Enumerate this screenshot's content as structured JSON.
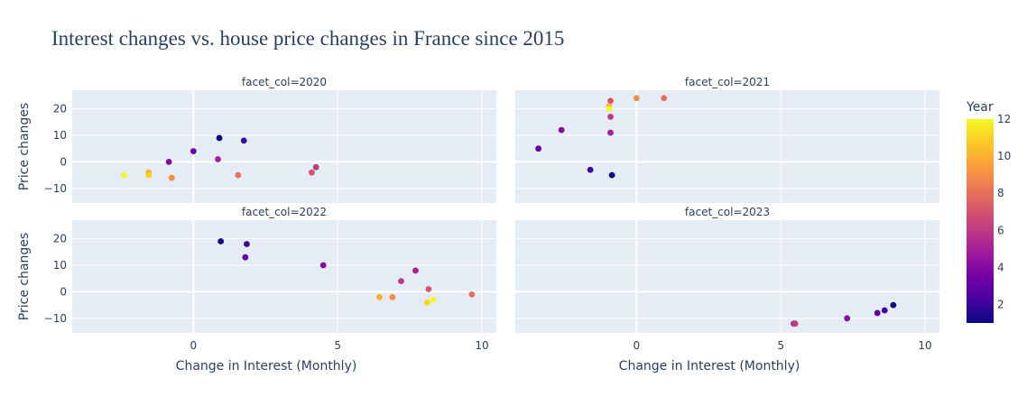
{
  "chart_data": {
    "type": "scatter",
    "title": "Interest changes vs. house price changes in France since 2015",
    "xlabel": "Change in Interest (Monthly)",
    "ylabel": "Price changes",
    "xlim": [
      -4.2,
      10.5
    ],
    "ylim": [
      -15.5,
      27
    ],
    "xticks": [
      0,
      5,
      10
    ],
    "yticks": [
      -10,
      0,
      10,
      20
    ],
    "colorbar": {
      "title": "Year",
      "min": 1,
      "max": 12,
      "ticks": [
        2,
        4,
        6,
        8,
        10,
        12
      ],
      "colorscale": [
        "#0d0887",
        "#46039f",
        "#7201a8",
        "#9c179e",
        "#bd3786",
        "#d8576b",
        "#ed7953",
        "#fb9f3a",
        "#fdca26",
        "#f0f921"
      ]
    },
    "facets": [
      {
        "label": "facet_col=2020",
        "points": [
          {
            "x": 0.9,
            "y": 9,
            "c": 1
          },
          {
            "x": 1.75,
            "y": 8,
            "c": 2
          },
          {
            "x": 0.0,
            "y": 4,
            "c": 3
          },
          {
            "x": -0.85,
            "y": 0,
            "c": 4
          },
          {
            "x": 0.85,
            "y": 1,
            "c": 5
          },
          {
            "x": 4.25,
            "y": -2,
            "c": 6
          },
          {
            "x": 4.1,
            "y": -4,
            "c": 7
          },
          {
            "x": 1.55,
            "y": -5,
            "c": 8
          },
          {
            "x": -0.75,
            "y": -6,
            "c": 9
          },
          {
            "x": -1.55,
            "y": -4,
            "c": 10
          },
          {
            "x": -1.55,
            "y": -5,
            "c": 11
          },
          {
            "x": -2.4,
            "y": -5,
            "c": 12
          }
        ]
      },
      {
        "label": "facet_col=2021",
        "points": [
          {
            "x": -0.85,
            "y": -5,
            "c": 1
          },
          {
            "x": -1.6,
            "y": -3,
            "c": 2
          },
          {
            "x": -3.4,
            "y": 5,
            "c": 3
          },
          {
            "x": -2.6,
            "y": 12,
            "c": 4
          },
          {
            "x": -0.9,
            "y": 11,
            "c": 5
          },
          {
            "x": -0.9,
            "y": 17,
            "c": 6
          },
          {
            "x": -0.9,
            "y": 23,
            "c": 7
          },
          {
            "x": 0.95,
            "y": 24,
            "c": 8
          },
          {
            "x": 0.0,
            "y": 24,
            "c": 9
          },
          {
            "x": -0.95,
            "y": 21,
            "c": 10
          },
          {
            "x": -0.95,
            "y": 20,
            "c": 12
          }
        ]
      },
      {
        "label": "facet_col=2022",
        "points": [
          {
            "x": 0.95,
            "y": 19,
            "c": 1
          },
          {
            "x": 1.85,
            "y": 18,
            "c": 2
          },
          {
            "x": 1.8,
            "y": 13,
            "c": 3
          },
          {
            "x": 4.5,
            "y": 10,
            "c": 4
          },
          {
            "x": 7.7,
            "y": 8,
            "c": 5
          },
          {
            "x": 7.2,
            "y": 4,
            "c": 6
          },
          {
            "x": 8.15,
            "y": 1,
            "c": 7
          },
          {
            "x": 9.65,
            "y": -1,
            "c": 8
          },
          {
            "x": 6.9,
            "y": -2,
            "c": 9
          },
          {
            "x": 6.45,
            "y": -2,
            "c": 10
          },
          {
            "x": 8.1,
            "y": -4,
            "c": 11
          },
          {
            "x": 8.3,
            "y": -3,
            "c": 12
          }
        ]
      },
      {
        "label": "facet_col=2023",
        "points": [
          {
            "x": 8.9,
            "y": -5,
            "c": 1
          },
          {
            "x": 8.6,
            "y": -7,
            "c": 2
          },
          {
            "x": 8.35,
            "y": -8,
            "c": 3
          },
          {
            "x": 7.3,
            "y": -10,
            "c": 4
          },
          {
            "x": 5.45,
            "y": -12,
            "c": 5
          },
          {
            "x": 5.5,
            "y": -12,
            "c": 6
          }
        ]
      }
    ]
  }
}
